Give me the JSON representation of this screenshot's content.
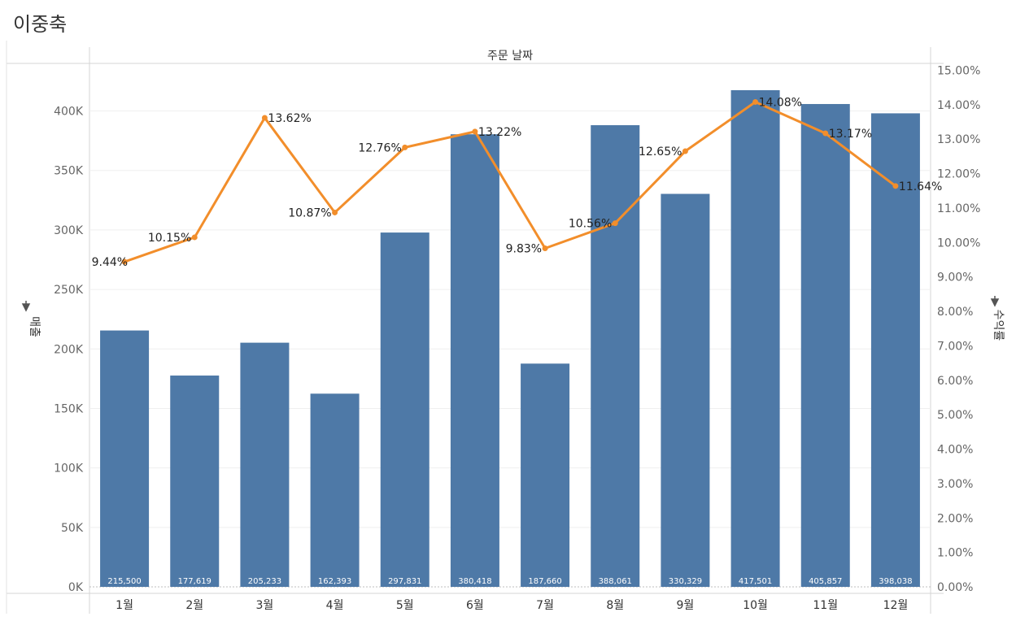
{
  "sheet": {
    "title": "이중축"
  },
  "chart_data": {
    "type": "bar+line",
    "column_header": "주문 날짜",
    "categories": [
      "1월",
      "2월",
      "3월",
      "4월",
      "5월",
      "6월",
      "7월",
      "8월",
      "9월",
      "10월",
      "11월",
      "12월"
    ],
    "left_axis": {
      "label": "매출",
      "range": [
        0,
        440000
      ],
      "ticks": [
        0,
        50000,
        100000,
        150000,
        200000,
        250000,
        300000,
        350000,
        400000
      ],
      "tick_labels": [
        "0K",
        "50K",
        "100K",
        "150K",
        "200K",
        "250K",
        "300K",
        "350K",
        "400K"
      ]
    },
    "right_axis": {
      "label": "수익률",
      "range": [
        0,
        15.2
      ],
      "ticks": [
        0,
        1,
        2,
        3,
        4,
        5,
        6,
        7,
        8,
        9,
        10,
        11,
        12,
        13,
        14,
        15
      ],
      "tick_labels": [
        "0.00%",
        "1.00%",
        "2.00%",
        "3.00%",
        "4.00%",
        "5.00%",
        "6.00%",
        "7.00%",
        "8.00%",
        "9.00%",
        "10.00%",
        "11.00%",
        "12.00%",
        "13.00%",
        "14.00%",
        "15.00%"
      ]
    },
    "series": [
      {
        "name": "매출",
        "type": "bar",
        "axis": "left",
        "color": "#4e79a7",
        "values": [
          215500,
          177619,
          205233,
          162393,
          297831,
          380418,
          187660,
          388061,
          330329,
          417501,
          405857,
          398038
        ],
        "labels": [
          "215,500",
          "177,619",
          "205,233",
          "162,393",
          "297,831",
          "380,418",
          "187,660",
          "388,061",
          "330,329",
          "417,501",
          "405,857",
          "398,038"
        ]
      },
      {
        "name": "수익률",
        "type": "line",
        "axis": "right",
        "color": "#f28e2b",
        "values": [
          9.44,
          10.15,
          13.62,
          10.87,
          12.76,
          13.22,
          9.83,
          10.56,
          12.65,
          14.08,
          13.17,
          11.64
        ],
        "labels": [
          "9.44%",
          "10.15%",
          "13.62%",
          "10.87%",
          "12.76%",
          "13.22%",
          "9.83%",
          "10.56%",
          "12.65%",
          "14.08%",
          "13.17%",
          "11.64%"
        ]
      }
    ],
    "grid": true
  }
}
